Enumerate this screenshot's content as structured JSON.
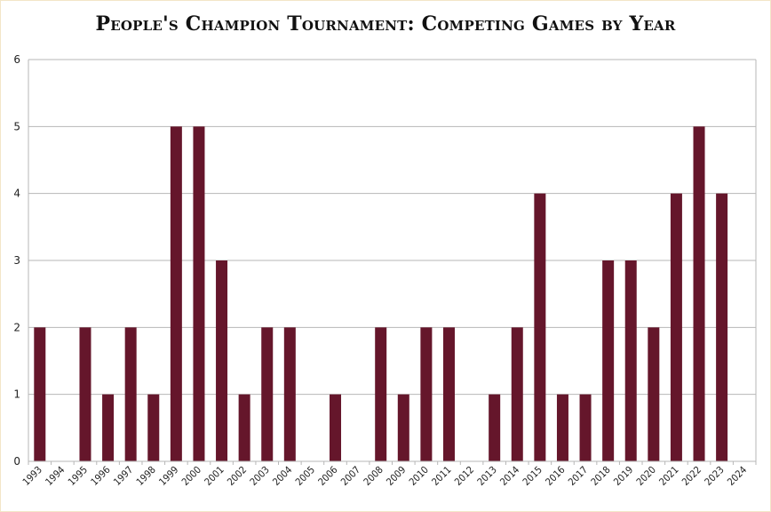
{
  "chart_data": {
    "type": "bar",
    "title": "People's Champion Tournament: Competing Games by Year",
    "xlabel": "",
    "ylabel": "",
    "categories": [
      "1993",
      "1994",
      "1995",
      "1996",
      "1997",
      "1998",
      "1999",
      "2000",
      "2001",
      "2002",
      "2003",
      "2004",
      "2005",
      "2006",
      "2007",
      "2008",
      "2009",
      "2010",
      "2011",
      "2012",
      "2013",
      "2014",
      "2015",
      "2016",
      "2017",
      "2018",
      "2019",
      "2020",
      "2021",
      "2022",
      "2023",
      "2024"
    ],
    "values": [
      2,
      0,
      2,
      1,
      2,
      1,
      5,
      5,
      3,
      1,
      2,
      2,
      0,
      1,
      0,
      2,
      1,
      2,
      2,
      0,
      1,
      2,
      4,
      1,
      1,
      3,
      3,
      2,
      4,
      5,
      4,
      0
    ],
    "ylim": [
      0,
      6
    ],
    "yticks": [
      0,
      1,
      2,
      3,
      4,
      5,
      6
    ],
    "grid": true,
    "legend": "none",
    "bar_color": "#65162b"
  }
}
